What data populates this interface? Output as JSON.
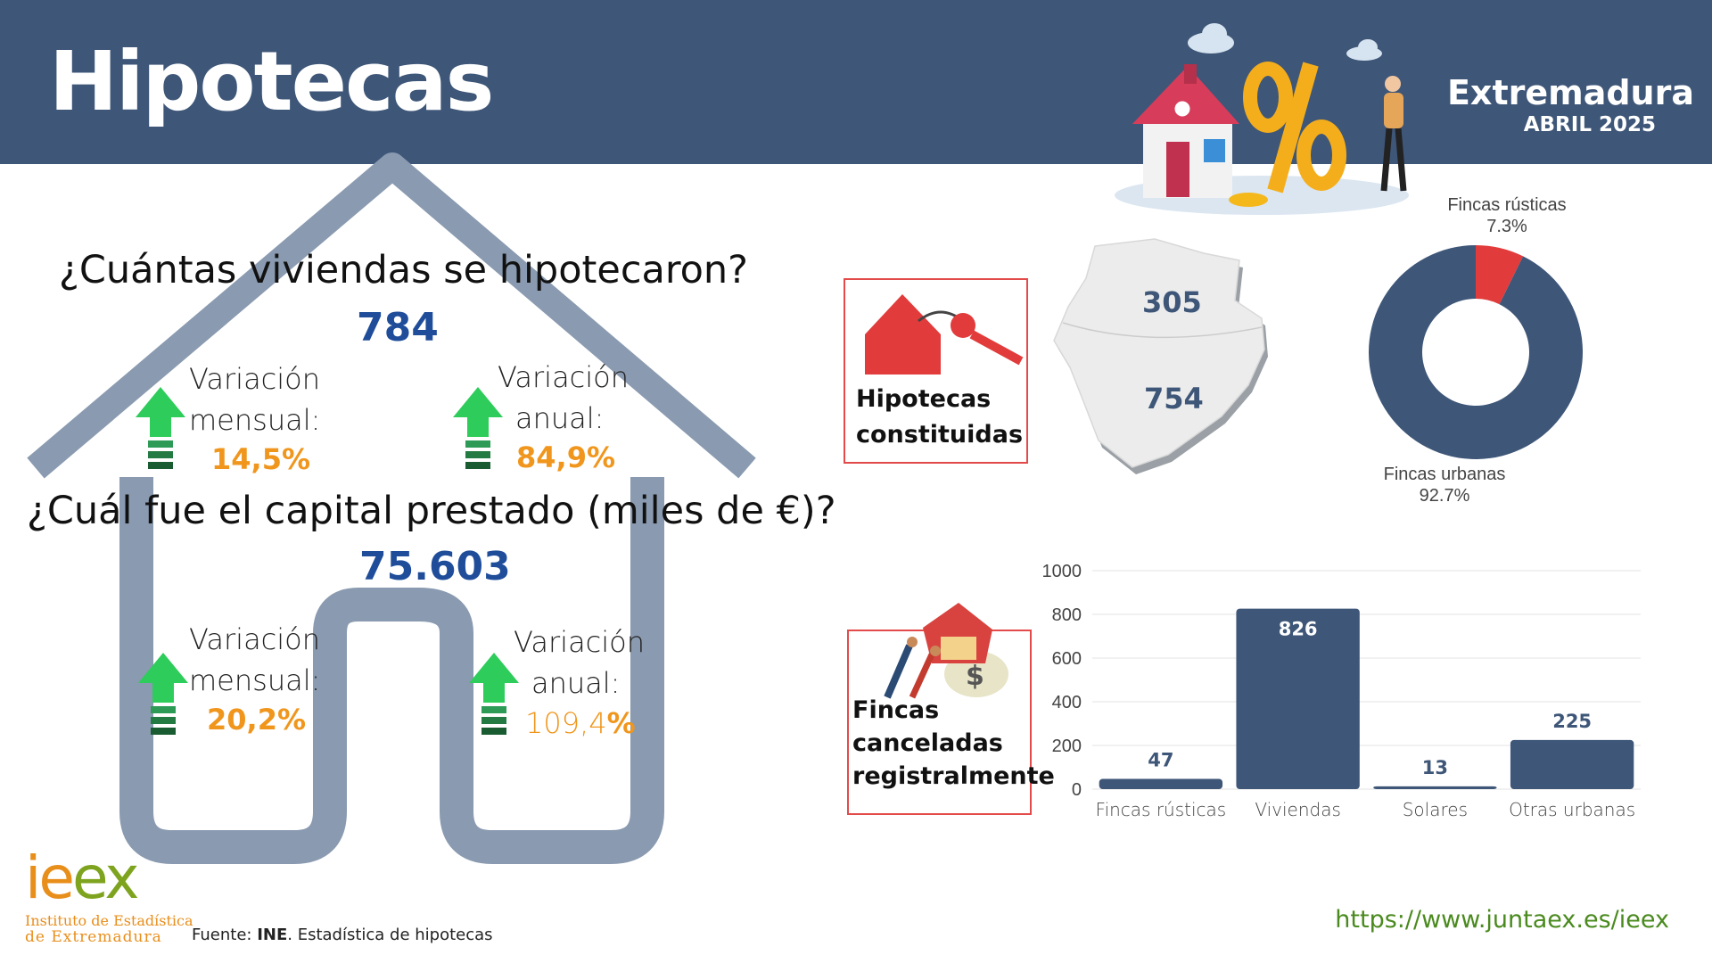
{
  "header": {
    "title": "Hipotecas",
    "region": "Extremadura",
    "period": "ABRIL 2025"
  },
  "viviendas": {
    "question": "¿Cuántas viviendas se hipotecaron?",
    "value": "784",
    "monthly_label_1": "Variación",
    "monthly_label_2": "mensual:",
    "monthly_value": "14,5%",
    "annual_label_1": "Variación",
    "annual_label_2": "anual:",
    "annual_value": "84,9%"
  },
  "capital": {
    "question": "¿Cuál fue el capital prestado (miles de €)?",
    "value": "75.603",
    "monthly_label_1": "Variación",
    "monthly_label_2": "mensual:",
    "monthly_value": "20,2%",
    "annual_label_1": "Variación",
    "annual_label_2": "anual:",
    "annual_value_num": "109,4",
    "annual_value_pct": "%"
  },
  "constituidas": {
    "label_1": "Hipotecas",
    "label_2": "constituidas",
    "map_north": "305",
    "map_south": "754"
  },
  "canceladas": {
    "label_1": "Fincas",
    "label_2": "canceladas",
    "label_3": "registralmente"
  },
  "colors": {
    "header": "#3e5678",
    "accent_blue": "#1f4d9a",
    "orange": "#f0961d",
    "arrow_green": "#2ecc5a",
    "donut_urban": "#3e5678",
    "donut_rustic": "#e23b3b",
    "house_outline": "#8a9ab0",
    "url_green": "#4a8a1e"
  },
  "chart_data": [
    {
      "type": "pie",
      "donut": true,
      "slices": [
        {
          "label": "Fincas rústicas",
          "value": 7.3,
          "value_label": "7.3%",
          "color": "#e23b3b"
        },
        {
          "label": "Fincas urbanas",
          "value": 92.7,
          "value_label": "92.7%",
          "color": "#3e5678"
        }
      ]
    },
    {
      "type": "bar",
      "categories": [
        "Fincas rústicas",
        "Viviendas",
        "Solares",
        "Otras urbanas"
      ],
      "values": [
        47,
        826,
        13,
        225
      ],
      "ylim": [
        0,
        1000
      ],
      "yticks": [
        0,
        200,
        400,
        600,
        800,
        1000
      ],
      "grid": true,
      "color": "#3e5678"
    }
  ],
  "footer": {
    "source_prefix": "Fuente: ",
    "source_bold": "INE",
    "source_rest": ". Estadística de hipotecas",
    "url": "https://www.juntaex.es/ieex",
    "logo_text": "ieex",
    "logo_line1": "Instituto de Estadística",
    "logo_line2": "de Extremadura"
  }
}
